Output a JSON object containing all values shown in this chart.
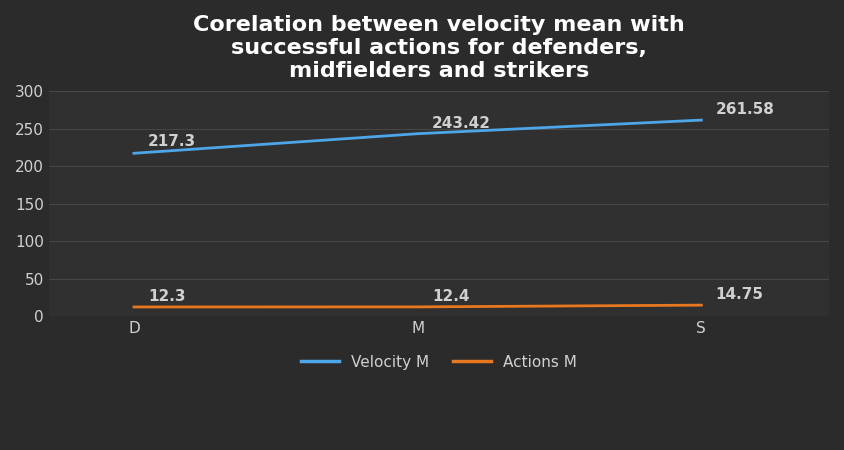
{
  "title": "Corelation between velocity mean with\nsuccessful actions for defenders,\nmidfielders and strikers",
  "categories": [
    "D",
    "M",
    "S"
  ],
  "velocity_values": [
    217.3,
    243.42,
    261.58
  ],
  "actions_values": [
    12.3,
    12.4,
    14.75
  ],
  "velocity_label": "Velocity M",
  "actions_label": "Actions M",
  "velocity_color": "#4da6e8",
  "actions_color": "#e87820",
  "background_color": "#2b2b2b",
  "plot_bg_color": "#303030",
  "text_color": "#d0d0d0",
  "grid_color": "#484848",
  "ylim": [
    0,
    300
  ],
  "yticks": [
    0,
    50,
    100,
    150,
    200,
    250,
    300
  ],
  "title_fontsize": 16,
  "tick_fontsize": 11,
  "annot_fontsize": 11,
  "legend_fontsize": 11,
  "line_width": 2.0
}
